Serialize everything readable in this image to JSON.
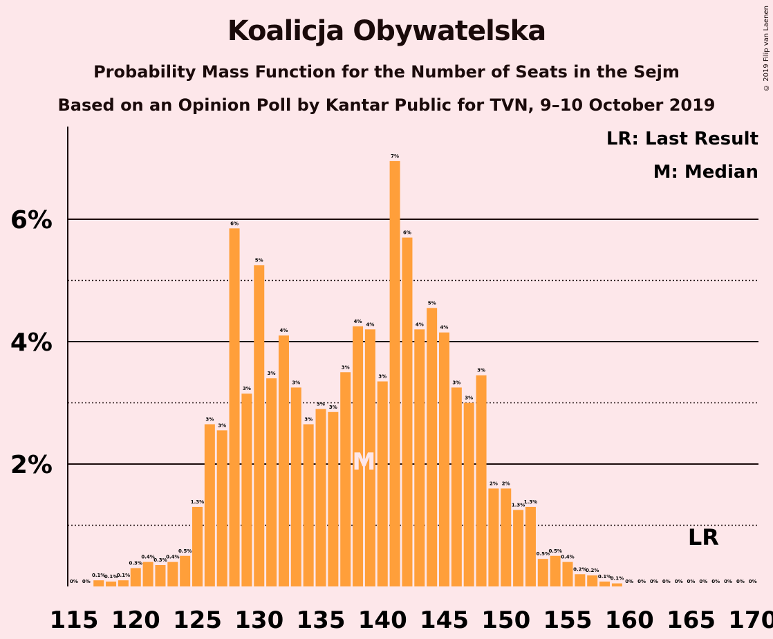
{
  "chart_data": {
    "type": "bar",
    "title": "Koalicja Obywatelska",
    "subtitle": "Probability Mass Function for the Number of Seats in the Sejm",
    "subtitle2": "Based on an Opinion Poll by Kantar Public for TVN, 9–10 October 2019",
    "copyright": "© 2019 Filip van Laenen",
    "legend": {
      "lr": "LR: Last Result",
      "m": "M: Median",
      "placement": "top-right"
    },
    "x": [
      115,
      116,
      117,
      118,
      119,
      120,
      121,
      122,
      123,
      124,
      125,
      126,
      127,
      128,
      129,
      130,
      131,
      132,
      133,
      134,
      135,
      136,
      137,
      138,
      139,
      140,
      141,
      142,
      143,
      144,
      145,
      146,
      147,
      148,
      149,
      150,
      151,
      152,
      153,
      154,
      155,
      156,
      157,
      158,
      159,
      160,
      161,
      162,
      163,
      164,
      165,
      166,
      167,
      168,
      169,
      170
    ],
    "values": [
      0,
      0,
      0.1,
      0.08,
      0.1,
      0.3,
      0.4,
      0.35,
      0.4,
      0.5,
      1.3,
      2.65,
      2.55,
      5.85,
      3.15,
      5.25,
      3.4,
      4.1,
      3.25,
      2.65,
      2.9,
      2.85,
      3.5,
      4.25,
      4.2,
      3.35,
      6.95,
      5.7,
      4.2,
      4.55,
      4.15,
      3.25,
      3.0,
      3.45,
      1.6,
      1.6,
      1.25,
      1.3,
      0.45,
      0.5,
      0.4,
      0.2,
      0.18,
      0.08,
      0.05,
      0,
      0,
      0,
      0,
      0,
      0,
      0,
      0,
      0,
      0,
      0
    ],
    "labels": [
      "0%",
      "0%",
      "0.1%",
      "0.1%",
      "0.1%",
      "0.3%",
      "0.4%",
      "0.3%",
      "0.4%",
      "0.5%",
      "1.3%",
      "3%",
      "3%",
      "6%",
      "3%",
      "5%",
      "3%",
      "4%",
      "3%",
      "3%",
      "3%",
      "3%",
      "3%",
      "4%",
      "4%",
      "3%",
      "7%",
      "6%",
      "4%",
      "5%",
      "4%",
      "3%",
      "3%",
      "3%",
      "2%",
      "2%",
      "1.3%",
      "1.3%",
      "0.5%",
      "0.5%",
      "0.4%",
      "0.2%",
      "0.2%",
      "0.1%",
      "0.1%",
      "0%",
      "0%",
      "0%",
      "0%",
      "0%",
      "0%",
      "0%",
      "0%",
      "0%",
      "0%",
      "0%"
    ],
    "x_ticks": [
      115,
      120,
      125,
      130,
      135,
      140,
      145,
      150,
      155,
      160,
      165,
      170
    ],
    "x_tick_labels": [
      "115",
      "120",
      "125",
      "130",
      "135",
      "140",
      "145",
      "150",
      "155",
      "160",
      "165",
      "170"
    ],
    "y_ticks": [
      2,
      4,
      6
    ],
    "y_tick_labels": [
      "2%",
      "4%",
      "6%"
    ],
    "y_minor_ticks": [
      1,
      3,
      5
    ],
    "ylim": [
      0,
      7.5
    ],
    "median_seat": 139,
    "median_label": "M",
    "last_result_seat": 166,
    "last_result_label": "LR",
    "colors": {
      "bar": "#ff9f3a",
      "background": "#fde7ea",
      "text": "#1a0a0a",
      "median": "#fde7ea"
    }
  }
}
